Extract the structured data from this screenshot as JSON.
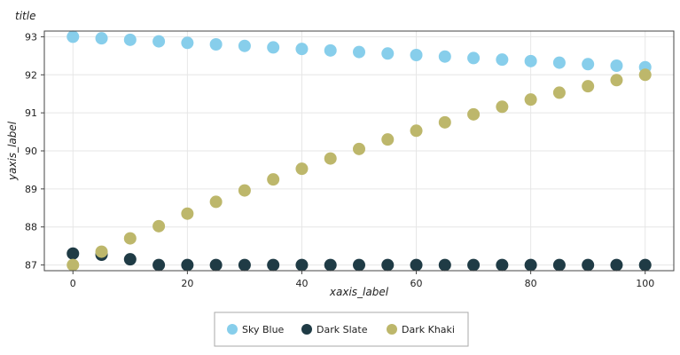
{
  "chart_data": {
    "type": "scatter",
    "title": "title",
    "xlabel": "xaxis_label",
    "ylabel": "yaxis_label",
    "xlim": [
      -5,
      105
    ],
    "ylim": [
      86.85,
      93.15
    ],
    "xticks": [
      0,
      20,
      40,
      60,
      80,
      100
    ],
    "xtick_labels": [
      "0",
      "20",
      "40",
      "60",
      "80",
      "100"
    ],
    "yticks": [
      87,
      88,
      89,
      90,
      91,
      92,
      93
    ],
    "ytick_labels": [
      "87",
      "88",
      "89",
      "90",
      "91",
      "92",
      "93"
    ],
    "grid": true,
    "legend_position": "bottom",
    "series": [
      {
        "name": "Sky Blue",
        "color": "#87CEEB",
        "x": [
          0,
          5,
          10,
          15,
          20,
          25,
          30,
          35,
          40,
          45,
          50,
          55,
          60,
          65,
          70,
          75,
          80,
          85,
          90,
          95,
          100
        ],
        "y": [
          93.0,
          92.96,
          92.92,
          92.88,
          92.84,
          92.8,
          92.76,
          92.72,
          92.68,
          92.64,
          92.6,
          92.56,
          92.52,
          92.48,
          92.44,
          92.4,
          92.36,
          92.32,
          92.28,
          92.24,
          92.2
        ]
      },
      {
        "name": "Dark Slate",
        "color": "#1f3b45",
        "x": [
          0,
          5,
          10,
          15,
          20,
          25,
          30,
          35,
          40,
          45,
          50,
          55,
          60,
          65,
          70,
          75,
          80,
          85,
          90,
          95,
          100
        ],
        "y": [
          87.3,
          87.27,
          87.15,
          87.0,
          87.0,
          87.0,
          87.0,
          87.0,
          87.0,
          87.0,
          87.0,
          87.0,
          87.0,
          87.0,
          87.0,
          87.0,
          87.0,
          87.0,
          87.0,
          87.0,
          87.0
        ]
      },
      {
        "name": "Dark Khaki",
        "color": "#BDB76B",
        "x": [
          0,
          5,
          10,
          15,
          20,
          25,
          30,
          35,
          40,
          45,
          50,
          55,
          60,
          65,
          70,
          75,
          80,
          85,
          90,
          95,
          100
        ],
        "y": [
          87.0,
          87.35,
          87.7,
          88.02,
          88.35,
          88.66,
          88.96,
          89.25,
          89.53,
          89.8,
          90.05,
          90.3,
          90.53,
          90.75,
          90.96,
          91.16,
          91.35,
          91.53,
          91.7,
          91.86,
          92.0
        ]
      }
    ]
  }
}
